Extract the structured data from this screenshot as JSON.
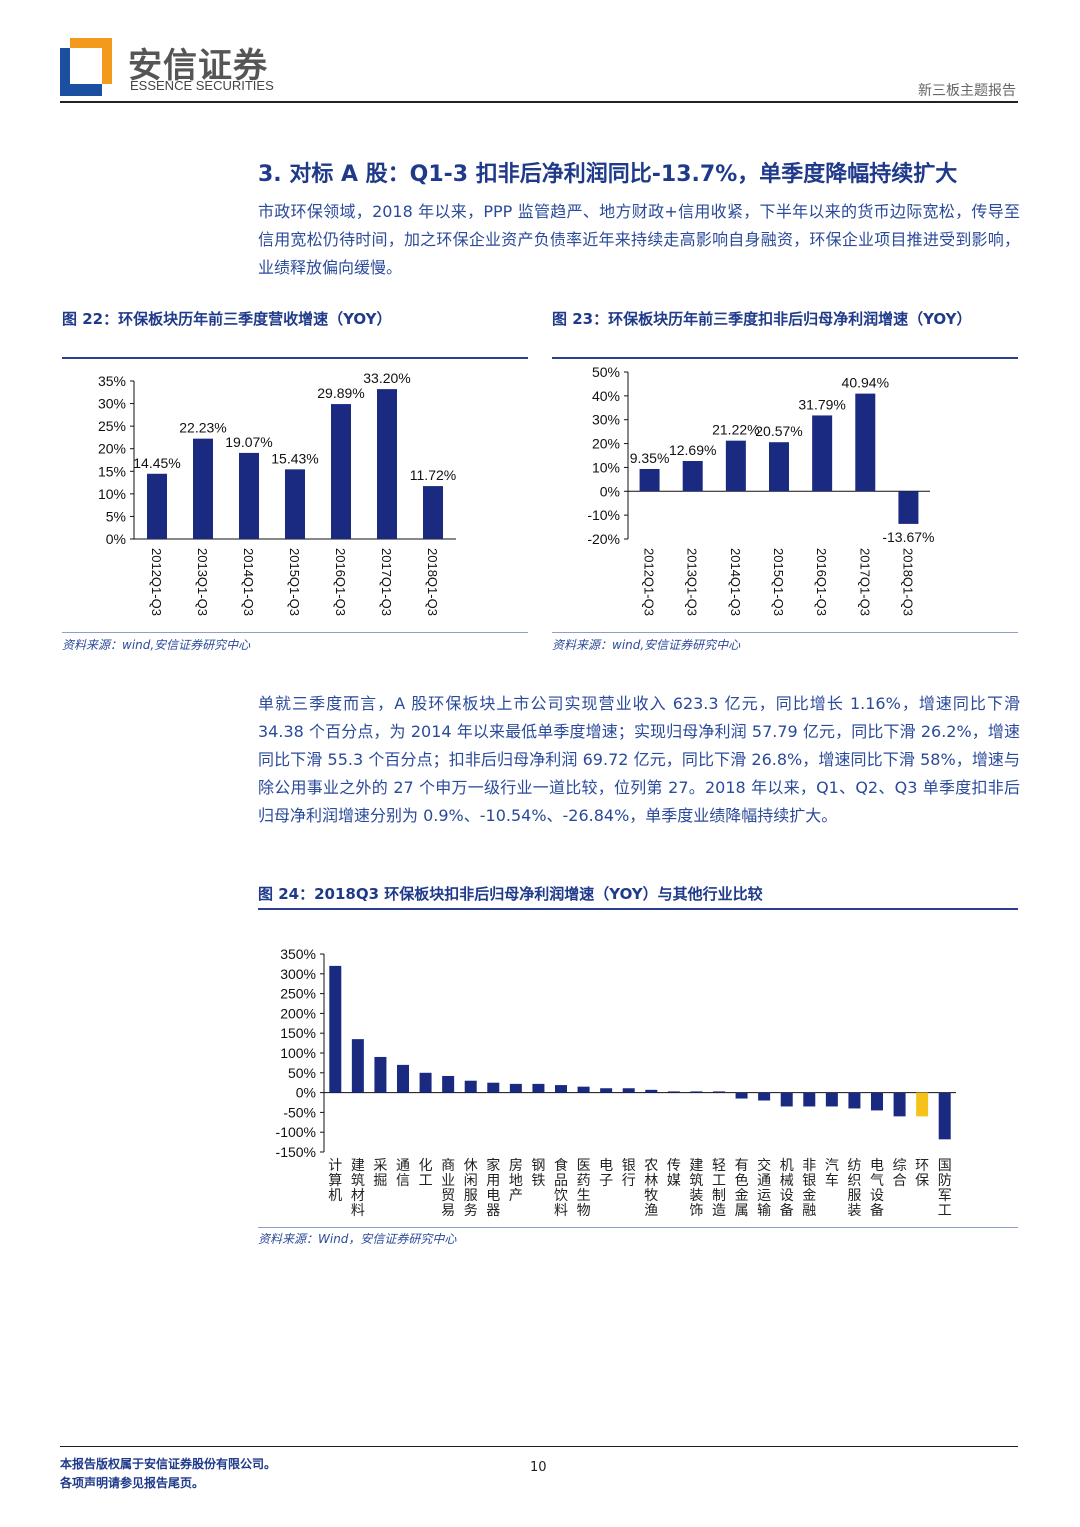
{
  "header": {
    "logo_cn": "安信证券",
    "logo_en": "ESSENCE SECURITIES",
    "report_type": "新三板主题报告",
    "logo_colors": {
      "orange": "#f39a1e",
      "blue": "#1b4fa0"
    }
  },
  "section": {
    "title": "3. 对标 A 股：Q1-3 扣非后净利润同比-13.7%，单季度降幅持续扩大",
    "para1": "市政环保领域，2018 年以来，PPP 监管趋严、地方财政+信用收紧，下半年以来的货币边际宽松，传导至信用宽松仍待时间，加之环保企业资产负债率近年来持续走高影响自身融资，环保企业项目推进受到影响，业绩释放偏向缓慢。",
    "para2": "单就三季度而言，A 股环保板块上市公司实现营业收入 623.3 亿元，同比增长 1.16%，增速同比下滑 34.38 个百分点，为 2014 年以来最低单季度增速；实现归母净利润 57.79 亿元，同比下滑 26.2%，增速同比下滑 55.3 个百分点；扣非后归母净利润 69.72 亿元，同比下滑 26.8%，增速同比下滑 58%，增速与除公用事业之外的 27 个申万一级行业一道比较，位列第 27。2018 年以来，Q1、Q2、Q3 单季度扣非后归母净利润增速分别为 0.9%、-10.54%、-26.84%，单季度业绩降幅持续扩大。"
  },
  "figures": {
    "fig22": {
      "title": "图 22：环保板块历年前三季度营收增速（YOY）",
      "source": "资料来源：wind,安信证券研究中心"
    },
    "fig23": {
      "title": "图 23：环保板块历年前三季度扣非后归母净利润增速（YOY）",
      "source": "资料来源：wind,安信证券研究中心"
    },
    "fig24": {
      "title": "图 24：2018Q3 环保板块扣非后归母净利润增速（YOY）与其他行业比较",
      "source": "资料来源：Wind，安信证券研究中心"
    }
  },
  "chart_data": [
    {
      "type": "bar",
      "categories": [
        "2012Q1-Q3",
        "2013Q1-Q3",
        "2014Q1-Q3",
        "2015Q1-Q3",
        "2016Q1-Q3",
        "2017Q1-Q3",
        "2018Q1-Q3"
      ],
      "values": [
        14.45,
        22.23,
        19.07,
        15.43,
        29.89,
        33.2,
        11.72
      ],
      "data_labels": [
        "14.45%",
        "22.23%",
        "19.07%",
        "15.43%",
        "29.89%",
        "33.20%",
        "11.72%"
      ],
      "yticks": [
        "0%",
        "5%",
        "10%",
        "15%",
        "20%",
        "25%",
        "30%",
        "35%"
      ],
      "ylim": [
        0,
        35
      ],
      "grid": false,
      "color": "#1a2a80"
    },
    {
      "type": "bar",
      "categories": [
        "2012Q1-Q3",
        "2013Q1-Q3",
        "2014Q1-Q3",
        "2015Q1-Q3",
        "2016Q1-Q3",
        "2017Q1-Q3",
        "2018Q1-Q3"
      ],
      "values": [
        9.35,
        12.69,
        21.22,
        20.57,
        31.79,
        40.94,
        -13.67
      ],
      "data_labels": [
        "9.35%",
        "12.69%",
        "21.22%",
        "20.57%",
        "31.79%",
        "40.94%",
        "-13.67%"
      ],
      "yticks": [
        "-20%",
        "-10%",
        "0%",
        "10%",
        "20%",
        "30%",
        "40%",
        "50%"
      ],
      "ylim": [
        -20,
        50
      ],
      "grid": false,
      "color": "#1a2a80"
    },
    {
      "type": "bar",
      "categories": [
        "计算机",
        "建筑材料",
        "采掘",
        "通信",
        "化工",
        "商业贸易",
        "休闲服务",
        "家用电器",
        "房地产",
        "钢铁",
        "食品饮料",
        "医药生物",
        "电子",
        "银行",
        "农林牧渔",
        "传媒",
        "建筑装饰",
        "轻工制造",
        "有色金属",
        "交通运输",
        "机械设备",
        "非银金融",
        "汽车",
        "纺织服装",
        "电气设备",
        "综合",
        "环保",
        "国防军工"
      ],
      "values": [
        320,
        135,
        90,
        70,
        50,
        42,
        30,
        25,
        22,
        22,
        19,
        15,
        11,
        11,
        7,
        3,
        3,
        3,
        -15,
        -20,
        -35,
        -35,
        -35,
        -40,
        -45,
        -60,
        -60,
        -118
      ],
      "highlight": "环保",
      "yticks": [
        "-150%",
        "-100%",
        "-50%",
        "0%",
        "50%",
        "100%",
        "150%",
        "200%",
        "250%",
        "300%",
        "350%"
      ],
      "ylim": [
        -150,
        350
      ],
      "grid": false,
      "color": "#1a2a80",
      "highlight_color": "#f5c21b"
    }
  ],
  "footer": {
    "line1": "本报告版权属于安信证券股份有限公司。",
    "line2": "各项声明请参见报告尾页。",
    "page": "10"
  }
}
